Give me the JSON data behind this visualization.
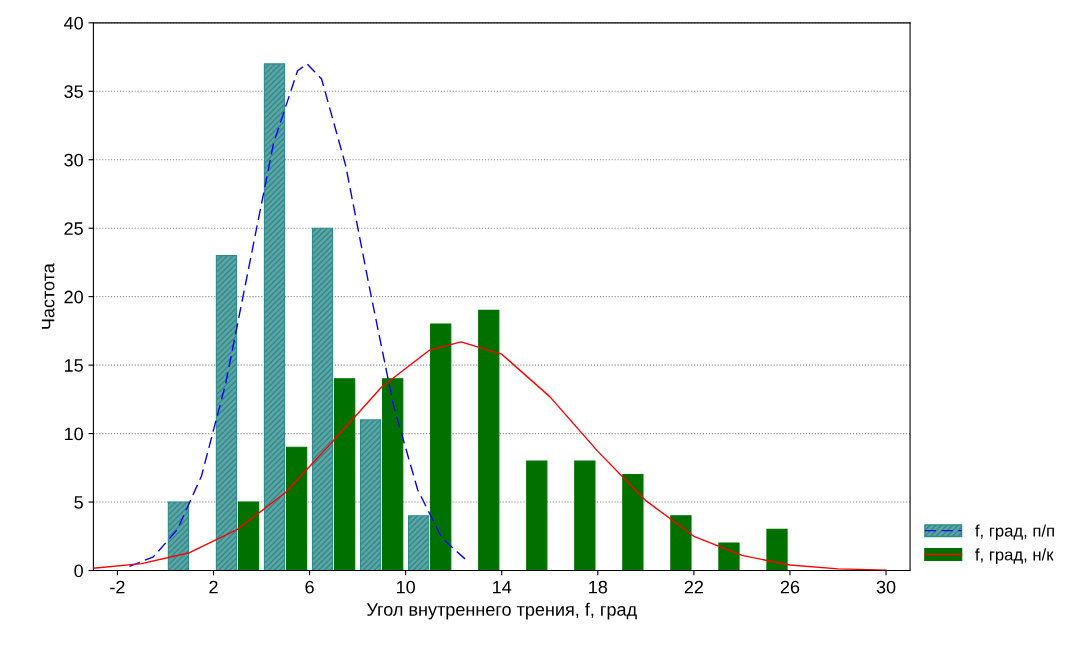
{
  "chart_data": {
    "type": "histogram",
    "xlabel": "Угол внутреннего трения, f, град",
    "ylabel": "Частота",
    "bins": [
      0,
      2,
      4,
      6,
      8,
      10,
      12,
      14,
      16,
      18,
      20,
      22,
      24,
      26
    ],
    "series": [
      {
        "name": "f, град, п/п",
        "color": "#2f8a8a",
        "values": [
          5,
          23,
          37,
          25,
          11,
          4,
          null,
          null,
          null,
          null,
          null,
          null,
          null
        ]
      },
      {
        "name": "f, град, н/к",
        "color": "#007000",
        "values": [
          null,
          5,
          9,
          14,
          14,
          18,
          19,
          8,
          8,
          7,
          4,
          2,
          3
        ]
      },
      {
        "type": "line",
        "color": "#0000ff",
        "line_style": "dashed",
        "x": [
          -1.5,
          -0.5,
          0.5,
          1.5,
          2.5,
          3.5,
          4.5,
          5.5,
          5.9,
          6.5,
          7.5,
          8.5,
          9.5,
          10.5,
          11.5,
          12.5
        ],
        "values": [
          0.3,
          1.0,
          3.0,
          6.9,
          13.6,
          22.4,
          31.2,
          36.5,
          37,
          35.9,
          29.6,
          20.6,
          12.0,
          5.9,
          2.4,
          0.8
        ]
      },
      {
        "type": "line",
        "color": "#ff0000",
        "line_style": "solid",
        "x": [
          -3,
          -1,
          1,
          3,
          5,
          7,
          9,
          11,
          12.3,
          14,
          16,
          18,
          20,
          22,
          24,
          26,
          28,
          30
        ],
        "values": [
          0.16,
          0.5,
          1.3,
          3.0,
          5.7,
          9.5,
          13.4,
          16.1,
          16.7,
          15.8,
          12.7,
          8.7,
          5.1,
          2.5,
          1.1,
          0.4,
          0.12,
          0.03
        ]
      }
    ],
    "xlim": [
      -3,
      31
    ],
    "xticks": [
      -2,
      2,
      6,
      10,
      14,
      18,
      22,
      26,
      30
    ],
    "ylim": [
      0,
      40
    ],
    "yticks": [
      0,
      5,
      10,
      15,
      20,
      25,
      30,
      35,
      40
    ],
    "grid": "y",
    "legend": "bottom right",
    "marker": "none"
  }
}
